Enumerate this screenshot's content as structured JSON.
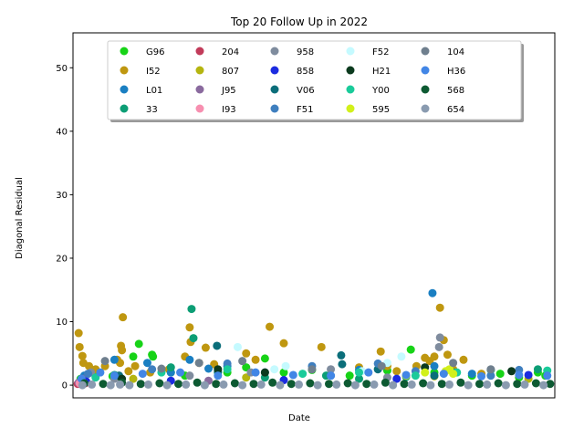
{
  "chart_data": {
    "type": "scatter",
    "title": "Top 20 Follow Up in 2022",
    "xlabel": "Date",
    "ylabel": "Diagonal Residual",
    "ylim": [
      -2,
      55.5
    ],
    "yticks": [
      0,
      10,
      20,
      30,
      40,
      50
    ],
    "xticks": [],
    "grid": false,
    "legend_placement": "upper-center",
    "legend_columns": 5,
    "series": [
      {
        "name": "G96",
        "color": "#17d317",
        "points": [
          [
            4,
            1.0
          ],
          [
            20,
            2.2
          ],
          [
            38,
            1.4
          ],
          [
            60,
            4.5
          ],
          [
            66,
            6.5
          ],
          [
            80,
            4.8
          ],
          [
            81,
            4.5
          ],
          [
            100,
            2.0
          ],
          [
            115,
            1.5
          ],
          [
            160,
            2.0
          ],
          [
            180,
            2.8
          ],
          [
            200,
            4.2
          ],
          [
            220,
            2.0
          ],
          [
            250,
            2.4
          ],
          [
            290,
            1.5
          ],
          [
            330,
            2.3
          ],
          [
            355,
            5.6
          ],
          [
            380,
            2.0
          ],
          [
            420,
            1.5
          ],
          [
            450,
            1.8
          ],
          [
            470,
            1.2
          ],
          [
            490,
            2.0
          ],
          [
            498,
            1.5
          ]
        ]
      },
      {
        "name": "I52",
        "color": "#bf9710",
        "points": [
          [
            2,
            8.2
          ],
          [
            3,
            6.0
          ],
          [
            6,
            4.6
          ],
          [
            7,
            3.5
          ],
          [
            13,
            3.0
          ],
          [
            20,
            2.5
          ],
          [
            30,
            3.0
          ],
          [
            43,
            4.0
          ],
          [
            46,
            3.5
          ],
          [
            47,
            6.2
          ],
          [
            48,
            5.5
          ],
          [
            49,
            10.7
          ],
          [
            55,
            2.2
          ],
          [
            62,
            3.0
          ],
          [
            78,
            2.0
          ],
          [
            98,
            2.5
          ],
          [
            115,
            4.5
          ],
          [
            120,
            9.1
          ],
          [
            121,
            6.8
          ],
          [
            130,
            3.5
          ],
          [
            137,
            5.9
          ],
          [
            146,
            3.3
          ],
          [
            180,
            5.0
          ],
          [
            190,
            4.0
          ],
          [
            205,
            9.2
          ],
          [
            220,
            6.6
          ],
          [
            260,
            6.0
          ],
          [
            300,
            2.8
          ],
          [
            323,
            5.3
          ],
          [
            330,
            3.0
          ],
          [
            340,
            2.2
          ],
          [
            361,
            3.0
          ],
          [
            370,
            4.3
          ],
          [
            375,
            3.8
          ],
          [
            380,
            4.5
          ],
          [
            386,
            12.2
          ],
          [
            390,
            7.1
          ],
          [
            394,
            4.8
          ],
          [
            400,
            2.5
          ],
          [
            411,
            4.0
          ],
          [
            430,
            1.8
          ]
        ]
      },
      {
        "name": "L01",
        "color": "#1a7fc2",
        "points": [
          [
            8,
            1.5
          ],
          [
            40,
            4.0
          ],
          [
            75,
            3.5
          ],
          [
            100,
            2.0
          ],
          [
            120,
            4.0
          ],
          [
            140,
            2.6
          ],
          [
            160,
            3.0
          ],
          [
            200,
            2.0
          ],
          [
            270,
            1.5
          ],
          [
            300,
            2.4
          ],
          [
            378,
            14.5
          ],
          [
            380,
            3.0
          ],
          [
            420,
            1.8
          ]
        ]
      },
      {
        "name": "33",
        "color": "#0c9e75",
        "points": [
          [
            10,
            0.5
          ],
          [
            40,
            1.6
          ],
          [
            100,
            2.8
          ],
          [
            122,
            12.0
          ],
          [
            124,
            7.4
          ],
          [
            150,
            2.0
          ],
          [
            200,
            1.2
          ],
          [
            265,
            1.5
          ],
          [
            300,
            1.0
          ],
          [
            350,
            1.3
          ],
          [
            400,
            2.0
          ],
          [
            440,
            2.4
          ],
          [
            490,
            2.5
          ]
        ]
      },
      {
        "name": "204",
        "color": "#c23b5a",
        "points": [
          [
            1,
            0.2
          ],
          [
            4,
            0.6
          ],
          [
            9,
            0.3
          ]
        ]
      },
      {
        "name": "807",
        "color": "#b5b510",
        "points": [
          [
            5,
            0.8
          ],
          [
            60,
            1.0
          ],
          [
            180,
            1.2
          ],
          [
            380,
            1.4
          ],
          [
            480,
            1.0
          ]
        ]
      },
      {
        "name": "J95",
        "color": "#8a6a9e",
        "points": [
          [
            2,
            0.4
          ],
          [
            7,
            1.0
          ],
          [
            140,
            0.7
          ]
        ]
      },
      {
        "name": "I93",
        "color": "#f78fb0",
        "points": [
          [
            3,
            0.3
          ],
          [
            8,
            0.5
          ]
        ]
      },
      {
        "name": "958",
        "color": "#7f8c9e",
        "points": [
          [
            15,
            2.0
          ],
          [
            40,
            1.0
          ],
          [
            120,
            1.5
          ],
          [
            185,
            2.0
          ],
          [
            270,
            2.5
          ],
          [
            330,
            1.2
          ],
          [
            385,
            6.0
          ],
          [
            386,
            7.5
          ]
        ]
      },
      {
        "name": "858",
        "color": "#1b2be0",
        "points": [
          [
            10,
            0.6
          ],
          [
            100,
            0.7
          ],
          [
            220,
            0.8
          ],
          [
            340,
            1.0
          ],
          [
            480,
            1.6
          ]
        ]
      },
      {
        "name": "V06",
        "color": "#0b6e7a",
        "points": [
          [
            45,
            1.5
          ],
          [
            149,
            6.2
          ],
          [
            150,
            2.2
          ],
          [
            281,
            4.7
          ],
          [
            282,
            3.3
          ],
          [
            320,
            2.5
          ],
          [
            380,
            1.5
          ]
        ]
      },
      {
        "name": "F51",
        "color": "#3f7fbf",
        "points": [
          [
            12,
            1.8
          ],
          [
            80,
            2.5
          ],
          [
            160,
            3.4
          ],
          [
            250,
            3.0
          ],
          [
            320,
            3.4
          ],
          [
            360,
            2.2
          ],
          [
            440,
            1.5
          ],
          [
            470,
            2.4
          ]
        ]
      },
      {
        "name": "F52",
        "color": "#c5faff",
        "points": [
          [
            210,
            2.5
          ],
          [
            222,
            3.0
          ],
          [
            303,
            2.2
          ],
          [
            330,
            3.5
          ],
          [
            171,
            6.0
          ],
          [
            345,
            4.5
          ]
        ]
      },
      {
        "name": "H21",
        "color": "#0b3a1e",
        "points": [
          [
            48,
            1.0
          ],
          [
            150,
            2.5
          ],
          [
            200,
            2.0
          ],
          [
            370,
            2.8
          ],
          [
            462,
            2.2
          ]
        ]
      },
      {
        "name": "Y00",
        "color": "#1acb9a",
        "points": [
          [
            20,
            1.2
          ],
          [
            90,
            2.0
          ],
          [
            160,
            2.5
          ],
          [
            240,
            1.8
          ],
          [
            300,
            2.0
          ],
          [
            360,
            1.5
          ],
          [
            404,
            2.0
          ],
          [
            500,
            2.3
          ]
        ]
      },
      {
        "name": "595",
        "color": "#d2f01a",
        "points": [
          [
            350,
            1.5
          ],
          [
            370,
            2.0
          ],
          [
            392,
            2.2
          ],
          [
            396,
            2.5
          ],
          [
            400,
            1.8
          ]
        ]
      },
      {
        "name": "104",
        "color": "#6f7f8e",
        "points": [
          [
            30,
            3.8
          ],
          [
            90,
            2.6
          ],
          [
            130,
            3.5
          ],
          [
            176,
            3.8
          ],
          [
            250,
            2.5
          ],
          [
            324,
            3.0
          ],
          [
            400,
            3.5
          ],
          [
            440,
            2.5
          ]
        ]
      },
      {
        "name": "H36",
        "color": "#4286e6",
        "points": [
          [
            5,
            1.0
          ],
          [
            25,
            2.0
          ],
          [
            40,
            1.5
          ],
          [
            70,
            1.8
          ],
          [
            110,
            2.0
          ],
          [
            150,
            1.5
          ],
          [
            190,
            2.0
          ],
          [
            230,
            1.6
          ],
          [
            270,
            1.5
          ],
          [
            310,
            2.0
          ],
          [
            350,
            1.6
          ],
          [
            390,
            1.8
          ],
          [
            430,
            1.4
          ],
          [
            470,
            1.6
          ],
          [
            500,
            1.5
          ]
        ]
      },
      {
        "name": "568",
        "color": "#0d5a32",
        "points": [
          [
            8,
            0.3
          ],
          [
            28,
            0.2
          ],
          [
            48,
            0.4
          ],
          [
            68,
            0.2
          ],
          [
            88,
            0.3
          ],
          [
            108,
            0.2
          ],
          [
            128,
            0.4
          ],
          [
            148,
            0.2
          ],
          [
            168,
            0.3
          ],
          [
            188,
            0.2
          ],
          [
            208,
            0.4
          ],
          [
            228,
            0.2
          ],
          [
            248,
            0.3
          ],
          [
            268,
            0.2
          ],
          [
            288,
            0.3
          ],
          [
            308,
            0.2
          ],
          [
            328,
            0.4
          ],
          [
            348,
            0.2
          ],
          [
            368,
            0.3
          ],
          [
            388,
            0.2
          ],
          [
            408,
            0.4
          ],
          [
            428,
            0.2
          ],
          [
            448,
            0.3
          ],
          [
            468,
            0.2
          ],
          [
            488,
            0.3
          ],
          [
            503,
            0.2
          ]
        ]
      },
      {
        "name": "654",
        "color": "#8a9bb0",
        "points": [
          [
            6,
            0.0
          ],
          [
            16,
            0.1
          ],
          [
            36,
            0.0
          ],
          [
            46,
            0.1
          ],
          [
            56,
            0.0
          ],
          [
            76,
            0.1
          ],
          [
            96,
            0.0
          ],
          [
            116,
            0.1
          ],
          [
            136,
            0.0
          ],
          [
            156,
            0.1
          ],
          [
            176,
            0.0
          ],
          [
            196,
            0.1
          ],
          [
            216,
            0.0
          ],
          [
            236,
            0.1
          ],
          [
            256,
            0.0
          ],
          [
            276,
            0.1
          ],
          [
            296,
            0.0
          ],
          [
            316,
            0.1
          ],
          [
            336,
            0.0
          ],
          [
            356,
            0.1
          ],
          [
            376,
            0.0
          ],
          [
            396,
            0.1
          ],
          [
            416,
            0.0
          ],
          [
            436,
            0.1
          ],
          [
            456,
            0.0
          ],
          [
            476,
            0.1
          ],
          [
            496,
            0.0
          ]
        ]
      }
    ]
  }
}
